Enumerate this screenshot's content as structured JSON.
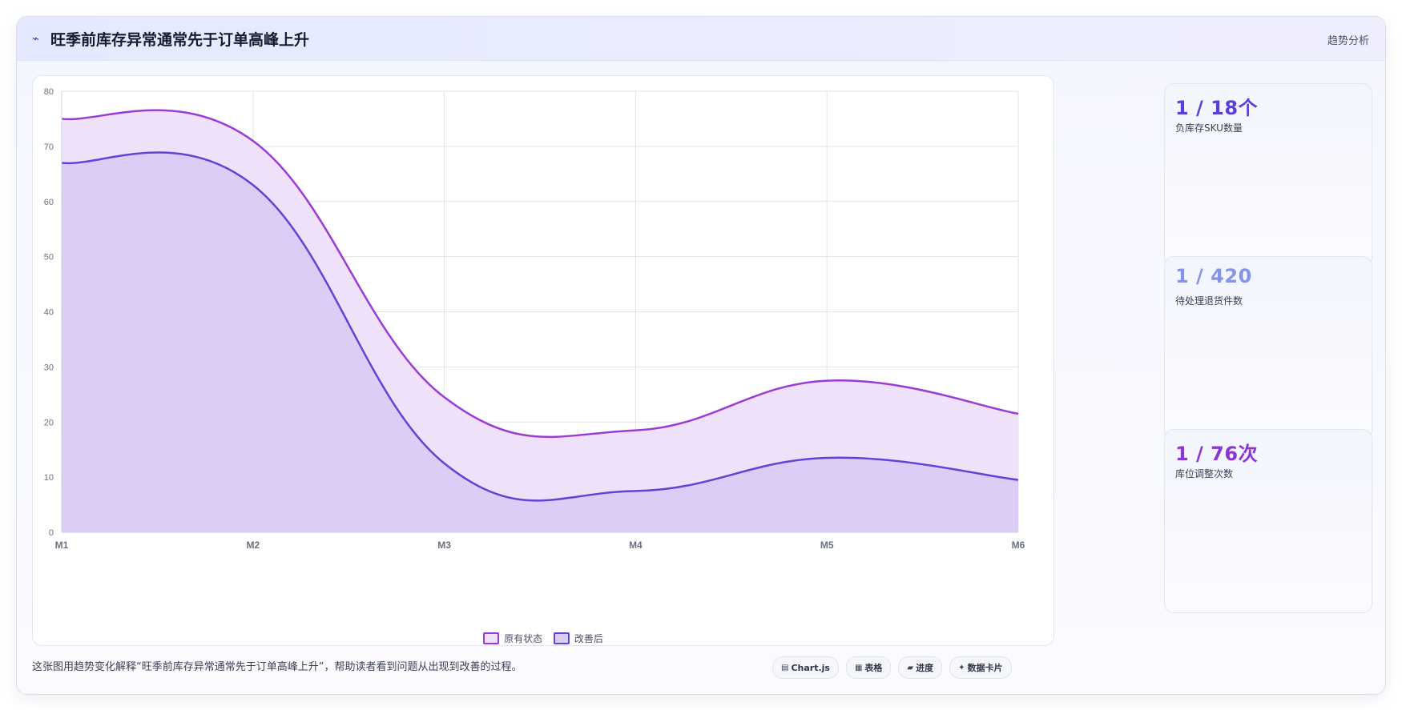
{
  "header": {
    "icon": "trend-icon",
    "title": "旺季前库存异常通常先于订单高峰上升",
    "tag": "趋势分析"
  },
  "chart_data": {
    "type": "area",
    "categories": [
      "M1",
      "M2",
      "M3",
      "M4",
      "M5",
      "M6"
    ],
    "ylim": [
      0,
      80
    ],
    "yticks": [
      0,
      10,
      20,
      30,
      40,
      50,
      60,
      70,
      80
    ],
    "grid": true,
    "legend": "bottom-center",
    "series": [
      {
        "name": "原有状态",
        "values": [
          75,
          71,
          24.5,
          18.5,
          27.5,
          21.5
        ],
        "color": "#9b3bd6",
        "fill": "#efe1f9"
      },
      {
        "name": "改善后",
        "values": [
          67,
          63,
          12.5,
          7.5,
          13.5,
          9.5
        ],
        "color": "#5d45d6",
        "fill": "#dccdf7"
      }
    ]
  },
  "stats": [
    {
      "value": "1 / 18个",
      "label": "负库存SKU数量",
      "color": "#5a3fd6"
    },
    {
      "value": "1 / 420",
      "label": "待处理退货件数",
      "color": "#8494e6"
    },
    {
      "value": "1 / 76次",
      "label": "库位调整次数",
      "color": "#8a36cf"
    }
  ],
  "footer": {
    "text": "这张图用趋势变化解释“旺季前库存异常通常先于订单高峰上升”，帮助读者看到问题从出现到改善的过程。",
    "chips": [
      {
        "icon": "chart-icon",
        "label": "Chart.js"
      },
      {
        "icon": "table-icon",
        "label": "表格"
      },
      {
        "icon": "progress-icon",
        "label": "进度"
      },
      {
        "icon": "card-icon",
        "label": "数据卡片"
      }
    ]
  }
}
